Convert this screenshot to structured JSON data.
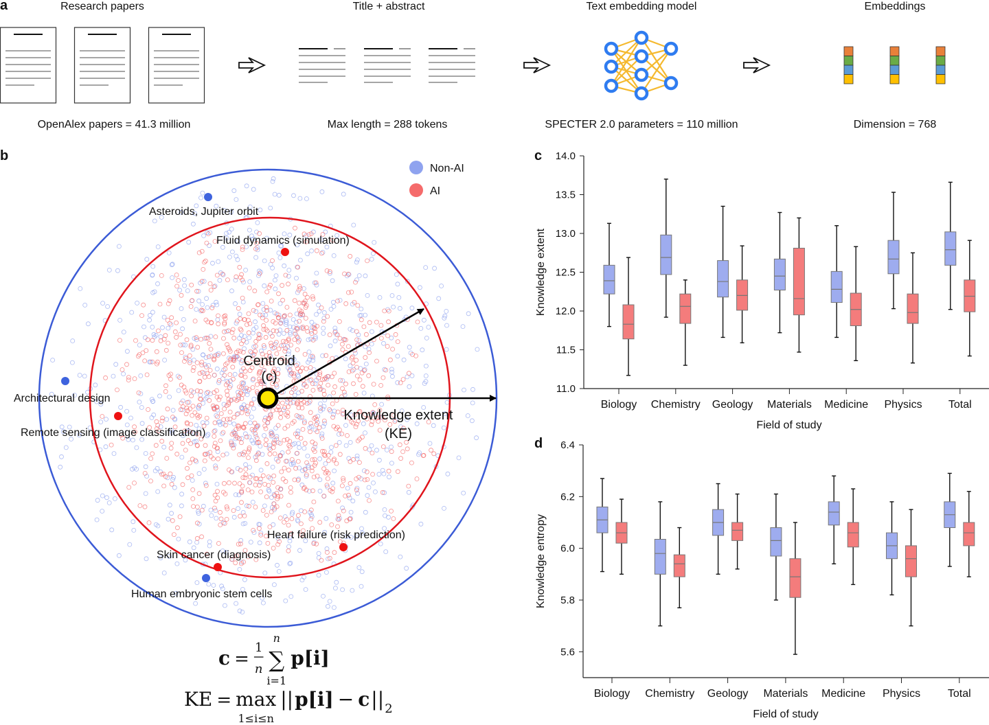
{
  "panel_labels": {
    "a": "a",
    "b": "b",
    "c": "c",
    "d": "d"
  },
  "panel_a": {
    "steps": [
      {
        "title": "Research papers",
        "caption": "OpenAlex papers = 41.3 million",
        "icon": "document-icon"
      },
      {
        "title": "Title + abstract",
        "caption": "Max length = 288 tokens",
        "icon": "text-lines-icon"
      },
      {
        "title": "Text embedding model",
        "caption": "SPECTER 2.0 parameters = 110 million",
        "icon": "neural-network-icon"
      },
      {
        "title": "Embeddings",
        "caption": "Dimension = 768",
        "icon": "embedding-vector-icon"
      }
    ],
    "embedding_colors": [
      "#e8803a",
      "#6aab46",
      "#5b9bd5",
      "#ffc000"
    ],
    "network_color": "#2f7cf0",
    "edge_color": "#f5b92e"
  },
  "panel_b": {
    "legend": [
      {
        "label": "Non-AI",
        "color": "#8fa3ef"
      },
      {
        "label": "AI",
        "color": "#f56b6b"
      }
    ],
    "centroid_label": "Centroid",
    "centroid_symbol": "(c)",
    "ke_label": "Knowledge extent",
    "ke_symbol": "(KE)",
    "outer_circle_color": "#3b5bd6",
    "inner_circle_color": "#e0141c",
    "annotations": [
      {
        "label": "Asteroids, Jupiter orbit",
        "group": "Non-AI"
      },
      {
        "label": "Fluid dynamics (simulation)",
        "group": "AI"
      },
      {
        "label": "Architectural design",
        "group": "Non-AI"
      },
      {
        "label": "Remote sensing (image classification)",
        "group": "AI"
      },
      {
        "label": "Heart failure (risk prediction)",
        "group": "AI"
      },
      {
        "label": "Skin cancer (diagnosis)",
        "group": "AI"
      },
      {
        "label": "Human embryonic stem cells",
        "group": "Non-AI"
      }
    ],
    "equations": {
      "centroid": {
        "lhs": "c",
        "eq": "=",
        "num": "1",
        "den": "n",
        "sum": "∑",
        "sum_top": "n",
        "sum_bottom": "i=1",
        "term": "p[i]"
      },
      "ke": {
        "lhs": "KE",
        "eq": "=",
        "op": "max",
        "op_sub": "1≤i≤n",
        "norm_open": "||",
        "term": "p[i]",
        "minus": "−",
        "c": "c",
        "norm_close": "||",
        "sub": "2"
      }
    }
  },
  "chart_data": [
    {
      "type": "box",
      "panel": "c",
      "xlabel": "Field of study",
      "ylabel": "Knowledge extent",
      "ylim": [
        11.0,
        14.0
      ],
      "yticks": [
        "11.0",
        "11.5",
        "12.0",
        "12.5",
        "13.0",
        "13.5",
        "14.0"
      ],
      "categories": [
        "Biology",
        "Chemistry",
        "Geology",
        "Materials",
        "Medicine",
        "Physics",
        "Total"
      ],
      "series": [
        {
          "name": "Non-AI",
          "color": "#9eacef",
          "stats": [
            {
              "min": 11.8,
              "q1": 12.22,
              "median": 12.39,
              "q3": 12.59,
              "max": 13.13
            },
            {
              "min": 11.92,
              "q1": 12.47,
              "median": 12.69,
              "q3": 12.98,
              "max": 13.7
            },
            {
              "min": 11.66,
              "q1": 12.18,
              "median": 12.38,
              "q3": 12.65,
              "max": 13.35
            },
            {
              "min": 11.72,
              "q1": 12.27,
              "median": 12.45,
              "q3": 12.67,
              "max": 13.27
            },
            {
              "min": 11.66,
              "q1": 12.11,
              "median": 12.28,
              "q3": 12.51,
              "max": 13.1
            },
            {
              "min": 12.03,
              "q1": 12.48,
              "median": 12.67,
              "q3": 12.91,
              "max": 13.53
            },
            {
              "min": 12.02,
              "q1": 12.59,
              "median": 12.79,
              "q3": 13.02,
              "max": 13.66
            }
          ]
        },
        {
          "name": "AI",
          "color": "#f47c7c",
          "stats": [
            {
              "min": 11.17,
              "q1": 11.64,
              "median": 11.83,
              "q3": 12.08,
              "max": 12.69
            },
            {
              "min": 11.3,
              "q1": 11.84,
              "median": 12.06,
              "q3": 12.22,
              "max": 12.4
            },
            {
              "min": 11.59,
              "q1": 12.01,
              "median": 12.2,
              "q3": 12.4,
              "max": 12.84
            },
            {
              "min": 11.47,
              "q1": 11.95,
              "median": 12.16,
              "q3": 12.81,
              "max": 13.2
            },
            {
              "min": 11.36,
              "q1": 11.81,
              "median": 12.02,
              "q3": 12.23,
              "max": 12.83
            },
            {
              "min": 11.33,
              "q1": 11.84,
              "median": 11.98,
              "q3": 12.22,
              "max": 12.75
            },
            {
              "min": 11.42,
              "q1": 11.99,
              "median": 12.19,
              "q3": 12.4,
              "max": 12.91
            }
          ]
        }
      ]
    },
    {
      "type": "box",
      "panel": "d",
      "xlabel": "Field of study",
      "ylabel": "Knowledge entropy",
      "ylim": [
        5.5,
        6.4
      ],
      "yticks": [
        "5.6",
        "5.8",
        "6.0",
        "6.2",
        "6.4"
      ],
      "categories": [
        "Biology",
        "Chemistry",
        "Geology",
        "Materials",
        "Medicine",
        "Physics",
        "Total"
      ],
      "series": [
        {
          "name": "Non-AI",
          "color": "#9eacef",
          "stats": [
            {
              "min": 5.91,
              "q1": 6.06,
              "median": 6.11,
              "q3": 6.16,
              "max": 6.27
            },
            {
              "min": 5.7,
              "q1": 5.9,
              "median": 5.98,
              "q3": 6.035,
              "max": 6.18
            },
            {
              "min": 5.9,
              "q1": 6.05,
              "median": 6.1,
              "q3": 6.15,
              "max": 6.25
            },
            {
              "min": 5.8,
              "q1": 5.97,
              "median": 6.03,
              "q3": 6.08,
              "max": 6.21
            },
            {
              "min": 5.94,
              "q1": 6.09,
              "median": 6.14,
              "q3": 6.18,
              "max": 6.28
            },
            {
              "min": 5.82,
              "q1": 5.96,
              "median": 6.01,
              "q3": 6.06,
              "max": 6.18
            },
            {
              "min": 5.93,
              "q1": 6.08,
              "median": 6.13,
              "q3": 6.18,
              "max": 6.29
            }
          ]
        },
        {
          "name": "AI",
          "color": "#f47c7c",
          "stats": [
            {
              "min": 5.9,
              "q1": 6.02,
              "median": 6.06,
              "q3": 6.1,
              "max": 6.19
            },
            {
              "min": 5.77,
              "q1": 5.89,
              "median": 5.94,
              "q3": 5.975,
              "max": 6.08
            },
            {
              "min": 5.92,
              "q1": 6.03,
              "median": 6.07,
              "q3": 6.1,
              "max": 6.21
            },
            {
              "min": 5.59,
              "q1": 5.81,
              "median": 5.89,
              "q3": 5.96,
              "max": 6.1
            },
            {
              "min": 5.86,
              "q1": 6.005,
              "median": 6.06,
              "q3": 6.1,
              "max": 6.23
            },
            {
              "min": 5.7,
              "q1": 5.89,
              "median": 5.96,
              "q3": 6.01,
              "max": 6.15
            },
            {
              "min": 5.89,
              "q1": 6.01,
              "median": 6.06,
              "q3": 6.1,
              "max": 6.22
            }
          ]
        }
      ]
    }
  ]
}
